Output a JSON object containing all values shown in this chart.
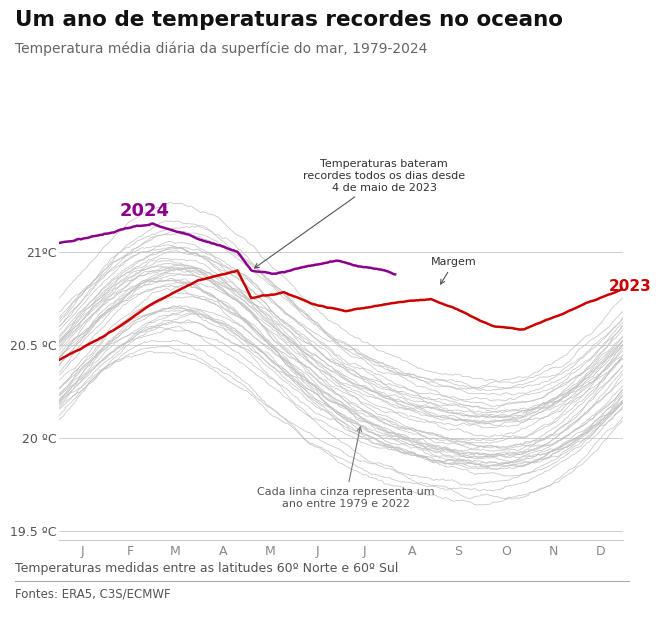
{
  "title": "Um ano de temperaturas recordes no oceano",
  "subtitle": "Temperatura média diária da superfície do mar, 1979-2024",
  "xlabel_note": "Temperaturas medidas entre as latitudes 60º Norte e 60º Sul",
  "source": "Fontes: ERA5, C3S/ECMWF",
  "months": [
    "J",
    "F",
    "M",
    "A",
    "M",
    "J",
    "J",
    "A",
    "S",
    "O",
    "N",
    "D"
  ],
  "ylim": [
    19.45,
    21.5
  ],
  "yticks": [
    19.5,
    20.0,
    20.5,
    21.0
  ],
  "ytick_labels": [
    "19.5 ºC",
    "20 ºC",
    "20.5 ºC",
    "21ºC"
  ],
  "color_2024": "#8B008B",
  "color_2023": "#CC0000",
  "color_gray": "#c0c0c0",
  "annotation_record": "Temperaturas bateram\nrecordes todos os dias desde\n4 de maio de 2023",
  "annotation_margem": "Margem",
  "annotation_gray": "Cada linha cinza representa um\nano entre 1979 e 2022",
  "label_2024": "2024",
  "label_2023": "2023",
  "background_color": "#ffffff"
}
